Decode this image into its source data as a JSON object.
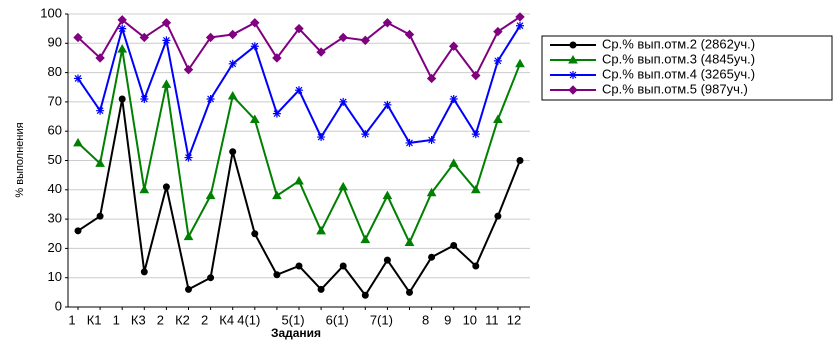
{
  "chart_data": {
    "type": "line",
    "x_label": "Задания",
    "y_label": "% выполнения",
    "categories": [
      "1",
      "К1",
      "1",
      "К3",
      "2",
      "К2",
      "2",
      "К4",
      "4(1)",
      null,
      "5(1)",
      null,
      "6(1)",
      null,
      "7(1)",
      null,
      "8",
      "9",
      "10",
      "11",
      "12"
    ],
    "series": [
      {
        "name": "Ср.% вып.отм.2 (2862уч.)",
        "color": "#000000",
        "marker": "circle",
        "values": [
          26,
          31,
          71,
          12,
          41,
          6,
          10,
          53,
          25,
          11,
          14,
          6,
          14,
          4,
          16,
          5,
          17,
          21,
          14,
          31,
          50
        ]
      },
      {
        "name": "Ср.% вып.отм.3 (4845уч.)",
        "color": "#008000",
        "marker": "triangle",
        "values": [
          56,
          49,
          88,
          40,
          76,
          24,
          38,
          72,
          64,
          38,
          43,
          26,
          41,
          23,
          38,
          22,
          39,
          49,
          40,
          64,
          83
        ]
      },
      {
        "name": "Ср.% вып.отм.4 (3265уч.)",
        "color": "#0000ff",
        "marker": "asterisk",
        "values": [
          78,
          67,
          95,
          71,
          91,
          51,
          71,
          83,
          89,
          66,
          74,
          58,
          70,
          59,
          69,
          56,
          57,
          71,
          59,
          84,
          96
        ]
      },
      {
        "name": "Ср.% вып.отм.5 (987уч.)",
        "color": "#800080",
        "marker": "diamond",
        "values": [
          92,
          85,
          98,
          92,
          97,
          81,
          92,
          93,
          97,
          85,
          95,
          87,
          92,
          91,
          97,
          93,
          78,
          89,
          79,
          94,
          99
        ]
      }
    ],
    "ylim": [
      0,
      100
    ],
    "yticks": [
      0,
      10,
      20,
      30,
      40,
      50,
      60,
      70,
      80,
      90,
      100
    ],
    "grid": true,
    "legend": "right"
  }
}
